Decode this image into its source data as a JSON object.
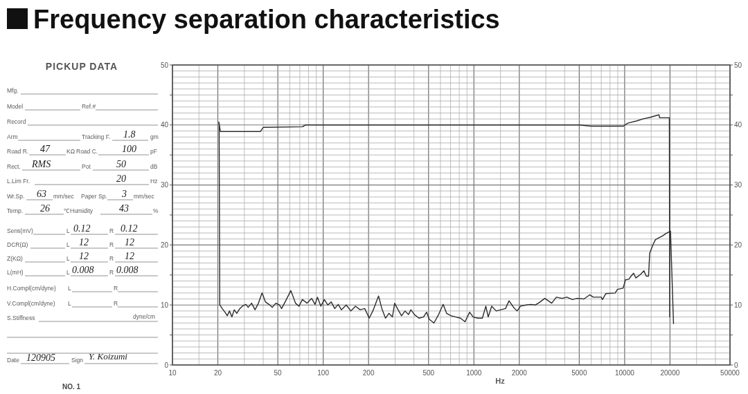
{
  "chart_data": [
    {
      "type": "line",
      "title": "Frequency separation characteristics",
      "xlabel": "Hz",
      "log": "x",
      "grid": true,
      "xlim": [
        10,
        50000
      ],
      "xticks": [
        10,
        {
          "value": 15,
          "label": null
        },
        20,
        {
          "value": 30,
          "label": null
        },
        {
          "value": 40,
          "label": null
        },
        50,
        {
          "value": 60,
          "label": null
        },
        {
          "value": 70,
          "label": null
        },
        {
          "value": 80,
          "label": null
        },
        {
          "value": 90,
          "label": null
        },
        100,
        {
          "value": 150,
          "label": null
        },
        200,
        {
          "value": 300,
          "label": null
        },
        {
          "value": 400,
          "label": null
        },
        500,
        {
          "value": 600,
          "label": null
        },
        {
          "value": 700,
          "label": null
        },
        {
          "value": 800,
          "label": null
        },
        {
          "value": 900,
          "label": null
        },
        1000,
        {
          "value": 1500,
          "label": null
        },
        2000,
        {
          "value": 3000,
          "label": null
        },
        {
          "value": 4000,
          "label": null
        },
        5000,
        {
          "value": 6000,
          "label": null
        },
        {
          "value": 7000,
          "label": null
        },
        {
          "value": 8000,
          "label": null
        },
        {
          "value": 9000,
          "label": null
        },
        10000,
        {
          "value": 15000,
          "label": null
        },
        20000,
        {
          "value": 30000,
          "label": null
        },
        {
          "value": 40000,
          "label": null
        },
        50000
      ],
      "ylim": [
        0,
        50
      ],
      "yticks": [
        0,
        {
          "value": 1,
          "label": null
        },
        {
          "value": 2,
          "label": null
        },
        {
          "value": 3,
          "label": null
        },
        {
          "value": 4,
          "label": null
        },
        {
          "value": 5,
          "label": null
        },
        {
          "value": 6,
          "label": null
        },
        {
          "value": 7,
          "label": null
        },
        {
          "value": 8,
          "label": null
        },
        {
          "value": 9,
          "label": null
        },
        10,
        {
          "value": 11,
          "label": null
        },
        {
          "value": 12,
          "label": null
        },
        {
          "value": 13,
          "label": null
        },
        {
          "value": 14,
          "label": null
        },
        {
          "value": 15,
          "label": null
        },
        {
          "value": 16,
          "label": null
        },
        {
          "value": 17,
          "label": null
        },
        {
          "value": 18,
          "label": null
        },
        {
          "value": 19,
          "label": null
        },
        20,
        {
          "value": 21,
          "label": null
        },
        {
          "value": 22,
          "label": null
        },
        {
          "value": 23,
          "label": null
        },
        {
          "value": 24,
          "label": null
        },
        {
          "value": 25,
          "label": null
        },
        {
          "value": 26,
          "label": null
        },
        {
          "value": 27,
          "label": null
        },
        {
          "value": 28,
          "label": null
        },
        {
          "value": 29,
          "label": null
        },
        30,
        {
          "value": 31,
          "label": null
        },
        {
          "value": 32,
          "label": null
        },
        {
          "value": 33,
          "label": null
        },
        {
          "value": 34,
          "label": null
        },
        {
          "value": 35,
          "label": null
        },
        {
          "value": 36,
          "label": null
        },
        {
          "value": 37,
          "label": null
        },
        {
          "value": 38,
          "label": null
        },
        {
          "value": 39,
          "label": null
        },
        40,
        {
          "value": 41,
          "label": null
        },
        {
          "value": 42,
          "label": null
        },
        {
          "value": 43,
          "label": null
        },
        {
          "value": 44,
          "label": null
        },
        {
          "value": 45,
          "label": null
        },
        {
          "value": 46,
          "label": null
        },
        {
          "value": 47,
          "label": null
        },
        {
          "value": 48,
          "label": null
        },
        {
          "value": 49,
          "label": null
        },
        50
      ],
      "y2lim": [
        0,
        50
      ],
      "y2ticks": [
        0,
        {
          "value": 5,
          "label": null
        },
        10,
        {
          "value": 15,
          "label": null
        },
        20,
        {
          "value": 25,
          "label": null
        },
        30,
        {
          "value": 35,
          "label": null
        },
        40,
        {
          "value": 45,
          "label": null
        },
        50
      ],
      "series": [
        {
          "color": "#2b2b2b",
          "x": [
            20.3,
            20.8,
            38.3,
            40,
            73,
            76,
            5000,
            6000,
            9800,
            10500,
            12100,
            13200,
            14900,
            16900,
            17050,
            19800,
            19900
          ],
          "values": [
            40.5,
            38.9,
            38.9,
            39.6,
            39.7,
            40.0,
            40.0,
            39.8,
            39.8,
            40.3,
            40.7,
            41.0,
            41.3,
            41.7,
            41.2,
            41.2,
            8.0
          ]
        },
        {
          "color": "#2b2b2b",
          "x": [
            20.4,
            20.6,
            21.4,
            22.6,
            23.1,
            23.9,
            24.8,
            25.7,
            26.7,
            28.0,
            29.1,
            30.7,
            31.8,
            33.5,
            35.3,
            37.2,
            39.3,
            41.4,
            43.7,
            46.0,
            48.5,
            51.2,
            53.0,
            55.9,
            61.0,
            65.5,
            69.1,
            72.8,
            78.2,
            83.8,
            88.3,
            91.6,
            96.5,
            101.8,
            107.3,
            113.1,
            119.3,
            125.8,
            132,
            142.2,
            152.6,
            163.8,
            175.8,
            188.7,
            202,
            213.5,
            233,
            245,
            259,
            273,
            288,
            298,
            314,
            331,
            349,
            368,
            382,
            403,
            432,
            463,
            485,
            506,
            543,
            583,
            625,
            659,
            707,
            759,
            814,
            873,
            937,
            988,
            1061,
            1138,
            1200,
            1244,
            1312,
            1407,
            1510,
            1621,
            1710,
            1833,
            1933,
            2038,
            2224,
            2388,
            2560,
            2748,
            2950,
            3281,
            3524,
            3846,
            4130,
            4506,
            4832,
            5372,
            5867,
            6186,
            6994,
            7126,
            7509,
            8650,
            8960,
            9776,
            10130,
            10680,
            10870,
            11460,
            11870,
            12740,
            13430,
            13910,
            14410,
            14660,
            15450,
            16020,
            17810,
            18780,
            20150,
            21100
          ],
          "values": [
            40.3,
            10.0,
            9.4,
            8.6,
            8.2,
            9.0,
            8.0,
            9.2,
            8.6,
            9.4,
            9.8,
            10.1,
            9.6,
            10.3,
            9.2,
            10.3,
            12.0,
            10.5,
            10.1,
            9.6,
            10.3,
            10.0,
            9.4,
            10.5,
            12.4,
            10.3,
            9.8,
            10.9,
            10.3,
            11.1,
            10.1,
            11.3,
            9.8,
            10.9,
            10.0,
            10.5,
            9.4,
            10.1,
            9.2,
            10.0,
            9.0,
            9.8,
            9.2,
            9.4,
            7.8,
            9.0,
            11.5,
            9.4,
            7.8,
            8.6,
            8.0,
            10.3,
            9.2,
            8.2,
            9.0,
            8.4,
            9.2,
            8.4,
            7.8,
            8.0,
            8.8,
            7.6,
            7.0,
            8.4,
            10.1,
            8.6,
            8.2,
            8.0,
            7.8,
            7.2,
            8.8,
            8.0,
            7.8,
            7.8,
            9.8,
            8.0,
            9.8,
            9.0,
            9.2,
            9.4,
            10.7,
            9.6,
            9.0,
            9.8,
            10.0,
            10.1,
            10.0,
            10.5,
            11.1,
            10.3,
            11.3,
            11.1,
            11.3,
            10.9,
            11.1,
            11.0,
            11.7,
            11.3,
            11.3,
            10.9,
            11.9,
            12.0,
            12.6,
            12.8,
            14.2,
            14.3,
            14.6,
            15.3,
            14.5,
            15.1,
            15.7,
            14.8,
            14.8,
            18.6,
            20.1,
            20.9,
            21.5,
            21.9,
            22.3,
            6.9
          ]
        }
      ]
    },
    {
      "type": "other",
      "title": "PICKUP DATA",
      "annotations": [
        "Mfg.",
        "Model",
        "Ref.#",
        "Record",
        "Arm",
        "Tracking F.",
        "1.8",
        "gm",
        "Road R.",
        "47",
        "KΩ",
        "Road C.",
        "100",
        "pF",
        "Rect.",
        "RMS",
        "Pot",
        "50",
        "dB",
        "L.Lim Fr.",
        "20",
        "Hz",
        "Wr.Sp.",
        "63",
        "mm/sec",
        "Paper Sp.",
        "3",
        "mm/sec",
        "Temp.",
        "26",
        "℃",
        "Humidity",
        "43",
        "%",
        "Sens(mV)",
        "L",
        "0.12",
        "R",
        "0.12",
        "DCR(Ω)",
        "L",
        "12",
        "R",
        "12",
        "Z(KΩ)",
        "L",
        "12",
        "R",
        "12",
        "L(mH)",
        "L",
        "0.008",
        "R",
        "0.008",
        "H.Compl(cm/dyne)",
        "L",
        "R",
        "V.Compl(cm/dyne)",
        "L",
        "R",
        "S.Stiffness",
        "dyne/cm",
        "Date",
        "120905",
        "Sign",
        "Y. Koizumi",
        "NO. 1"
      ]
    }
  ]
}
